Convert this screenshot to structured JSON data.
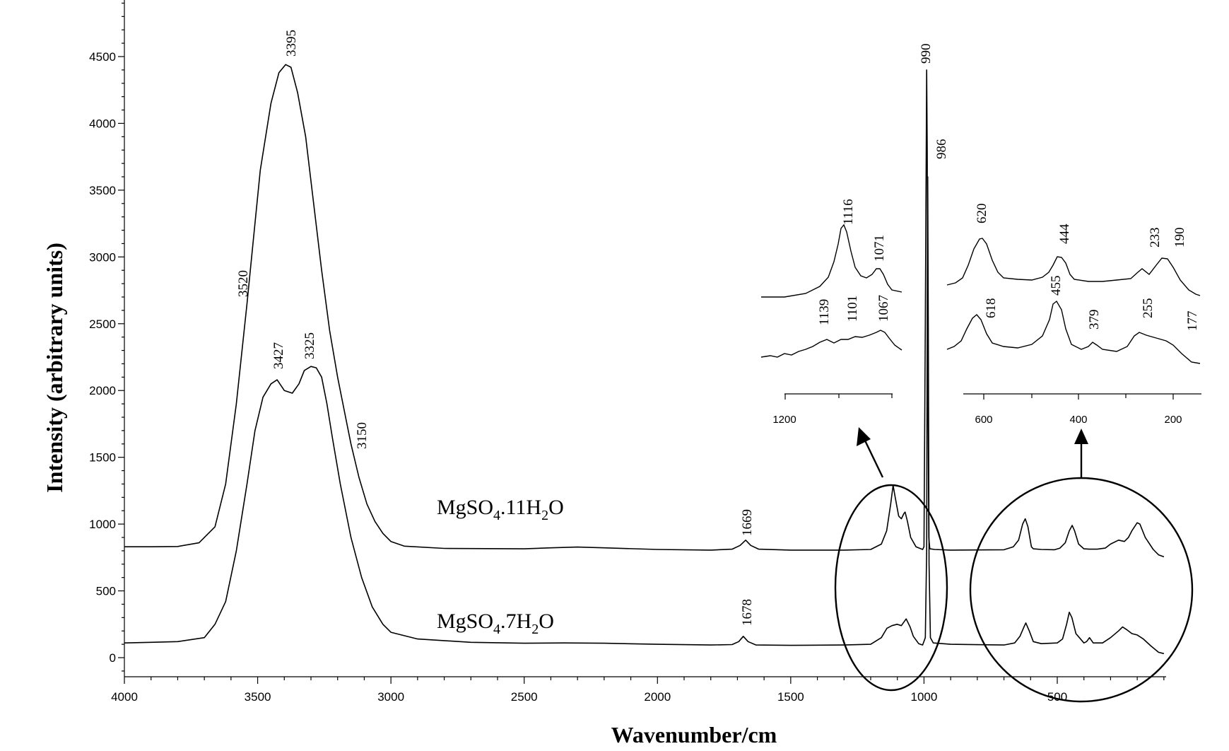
{
  "chart_data": {
    "type": "line",
    "xlabel": "Wavenumber/cm",
    "ylabel": "Intensity (arbitrary units)",
    "xlim": [
      4000,
      80
    ],
    "ylim": [
      -150,
      4950
    ],
    "x_ticks": [
      4000,
      3500,
      3000,
      2500,
      2000,
      1500,
      1000,
      500
    ],
    "y_ticks": [
      0,
      500,
      1000,
      1500,
      2000,
      2500,
      3000,
      3500,
      4000,
      4500
    ],
    "series": [
      {
        "name": "MgSO4.11H2O",
        "label_main": "MgSO",
        "label_sub1": "4",
        "label_mid": ".11H",
        "label_sub2": "2",
        "label_end": "O",
        "baseline": 830,
        "points": [
          [
            4000,
            830
          ],
          [
            3900,
            830
          ],
          [
            3800,
            832
          ],
          [
            3720,
            860
          ],
          [
            3660,
            980
          ],
          [
            3620,
            1300
          ],
          [
            3580,
            1900
          ],
          [
            3540,
            2650
          ],
          [
            3520,
            3050
          ],
          [
            3490,
            3650
          ],
          [
            3450,
            4150
          ],
          [
            3420,
            4380
          ],
          [
            3395,
            4440
          ],
          [
            3375,
            4420
          ],
          [
            3350,
            4230
          ],
          [
            3320,
            3900
          ],
          [
            3290,
            3400
          ],
          [
            3260,
            2900
          ],
          [
            3230,
            2450
          ],
          [
            3200,
            2100
          ],
          [
            3170,
            1800
          ],
          [
            3150,
            1600
          ],
          [
            3120,
            1350
          ],
          [
            3090,
            1150
          ],
          [
            3060,
            1020
          ],
          [
            3030,
            930
          ],
          [
            3000,
            870
          ],
          [
            2950,
            835
          ],
          [
            2800,
            818
          ],
          [
            2500,
            815
          ],
          [
            2400,
            822
          ],
          [
            2300,
            828
          ],
          [
            2200,
            822
          ],
          [
            2000,
            810
          ],
          [
            1800,
            805
          ],
          [
            1720,
            812
          ],
          [
            1690,
            840
          ],
          [
            1669,
            880
          ],
          [
            1650,
            840
          ],
          [
            1620,
            812
          ],
          [
            1500,
            805
          ],
          [
            1300,
            805
          ],
          [
            1200,
            810
          ],
          [
            1160,
            850
          ],
          [
            1140,
            950
          ],
          [
            1125,
            1150
          ],
          [
            1116,
            1290
          ],
          [
            1108,
            1200
          ],
          [
            1095,
            1060
          ],
          [
            1085,
            1040
          ],
          [
            1075,
            1080
          ],
          [
            1071,
            1090
          ],
          [
            1062,
            1020
          ],
          [
            1050,
            900
          ],
          [
            1030,
            830
          ],
          [
            1005,
            810
          ],
          [
            1000,
            830
          ],
          [
            995,
            2500
          ],
          [
            992,
            3600
          ],
          [
            990,
            4400
          ],
          [
            988,
            3800
          ],
          [
            985,
            2000
          ],
          [
            982,
            900
          ],
          [
            978,
            815
          ],
          [
            960,
            810
          ],
          [
            900,
            805
          ],
          [
            700,
            808
          ],
          [
            665,
            830
          ],
          [
            645,
            880
          ],
          [
            630,
            1000
          ],
          [
            620,
            1040
          ],
          [
            610,
            980
          ],
          [
            597,
            830
          ],
          [
            590,
            815
          ],
          [
            560,
            810
          ],
          [
            510,
            808
          ],
          [
            490,
            820
          ],
          [
            470,
            860
          ],
          [
            455,
            950
          ],
          [
            444,
            990
          ],
          [
            435,
            950
          ],
          [
            420,
            850
          ],
          [
            400,
            815
          ],
          [
            380,
            812
          ],
          [
            350,
            812
          ],
          [
            320,
            820
          ],
          [
            300,
            850
          ],
          [
            270,
            880
          ],
          [
            248,
            870
          ],
          [
            233,
            900
          ],
          [
            220,
            950
          ],
          [
            200,
            1010
          ],
          [
            190,
            1000
          ],
          [
            170,
            900
          ],
          [
            140,
            810
          ],
          [
            120,
            770
          ],
          [
            100,
            755
          ]
        ]
      },
      {
        "name": "MgSO4.7H2O",
        "label_main": "MgSO",
        "label_sub1": "4",
        "label_mid": ".7H",
        "label_sub2": "2",
        "label_end": "O",
        "baseline": 120,
        "points": [
          [
            4000,
            110
          ],
          [
            3900,
            115
          ],
          [
            3800,
            120
          ],
          [
            3700,
            150
          ],
          [
            3660,
            250
          ],
          [
            3620,
            420
          ],
          [
            3580,
            800
          ],
          [
            3540,
            1300
          ],
          [
            3510,
            1700
          ],
          [
            3480,
            1950
          ],
          [
            3450,
            2050
          ],
          [
            3427,
            2080
          ],
          [
            3400,
            2000
          ],
          [
            3370,
            1980
          ],
          [
            3345,
            2050
          ],
          [
            3325,
            2150
          ],
          [
            3300,
            2180
          ],
          [
            3280,
            2170
          ],
          [
            3260,
            2100
          ],
          [
            3240,
            1900
          ],
          [
            3220,
            1650
          ],
          [
            3190,
            1300
          ],
          [
            3150,
            900
          ],
          [
            3110,
            600
          ],
          [
            3070,
            380
          ],
          [
            3030,
            250
          ],
          [
            3000,
            190
          ],
          [
            2900,
            140
          ],
          [
            2700,
            115
          ],
          [
            2500,
            108
          ],
          [
            2350,
            110
          ],
          [
            2200,
            108
          ],
          [
            2000,
            100
          ],
          [
            1800,
            95
          ],
          [
            1720,
            98
          ],
          [
            1695,
            120
          ],
          [
            1678,
            160
          ],
          [
            1660,
            120
          ],
          [
            1630,
            95
          ],
          [
            1500,
            92
          ],
          [
            1300,
            95
          ],
          [
            1200,
            100
          ],
          [
            1160,
            150
          ],
          [
            1139,
            220
          ],
          [
            1120,
            240
          ],
          [
            1101,
            250
          ],
          [
            1085,
            240
          ],
          [
            1067,
            290
          ],
          [
            1052,
            230
          ],
          [
            1040,
            160
          ],
          [
            1020,
            105
          ],
          [
            1005,
            95
          ],
          [
            995,
            150
          ],
          [
            990,
            800
          ],
          [
            988,
            2500
          ],
          [
            986,
            3600
          ],
          [
            984,
            2500
          ],
          [
            981,
            700
          ],
          [
            976,
            150
          ],
          [
            965,
            110
          ],
          [
            900,
            100
          ],
          [
            700,
            95
          ],
          [
            660,
            110
          ],
          [
            640,
            160
          ],
          [
            625,
            230
          ],
          [
            618,
            260
          ],
          [
            605,
            200
          ],
          [
            590,
            120
          ],
          [
            560,
            105
          ],
          [
            500,
            110
          ],
          [
            480,
            140
          ],
          [
            465,
            250
          ],
          [
            455,
            340
          ],
          [
            445,
            300
          ],
          [
            430,
            180
          ],
          [
            400,
            110
          ],
          [
            390,
            120
          ],
          [
            379,
            150
          ],
          [
            365,
            110
          ],
          [
            330,
            110
          ],
          [
            300,
            150
          ],
          [
            270,
            200
          ],
          [
            255,
            230
          ],
          [
            240,
            210
          ],
          [
            220,
            180
          ],
          [
            200,
            170
          ],
          [
            177,
            140
          ],
          [
            150,
            90
          ],
          [
            120,
            40
          ],
          [
            100,
            30
          ]
        ]
      }
    ],
    "peak_labels": [
      "3395",
      "3520",
      "3427",
      "3325",
      "3150",
      "1669",
      "1678",
      "990",
      "986"
    ],
    "inset": {
      "left_ticks": [
        "1200"
      ],
      "right_ticks": [
        "600",
        "400",
        "200"
      ],
      "left_upper_labels": [
        "1116",
        "1071"
      ],
      "left_lower_labels": [
        "1139",
        "1101",
        "1067"
      ],
      "right_upper_labels": [
        "620",
        "444",
        "233",
        "190"
      ],
      "right_lower_labels": [
        "618",
        "455",
        "379",
        "255",
        "177"
      ]
    }
  }
}
